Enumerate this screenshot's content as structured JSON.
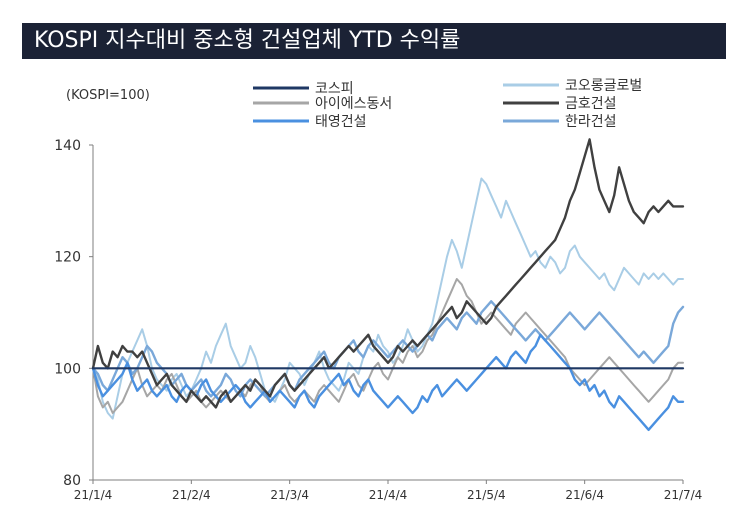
{
  "chart_data": {
    "type": "line",
    "title": "KOSPI 지수대비 중소형 건설업체 YTD 수익률",
    "unit_label": "(KOSPI=100)",
    "x_ticks": [
      "21/1/4",
      "21/2/4",
      "21/3/4",
      "21/4/4",
      "21/5/4",
      "21/6/4",
      "21/7/4"
    ],
    "x_range": [
      0,
      6
    ],
    "y_ticks": [
      80,
      100,
      120,
      140
    ],
    "ylim": [
      80,
      140
    ],
    "legend_position": "top",
    "series": [
      {
        "name": "코스피",
        "color": "#1f3864",
        "width": 2.2,
        "x": [
          0,
          6
        ],
        "values": [
          100,
          100
        ]
      },
      {
        "name": "코오롱글로벌",
        "color": "#a9cde6",
        "width": 2,
        "x": [
          0,
          0.05,
          0.1,
          0.15,
          0.2,
          0.25,
          0.3,
          0.35,
          0.4,
          0.45,
          0.5,
          0.55,
          0.6,
          0.65,
          0.7,
          0.75,
          0.8,
          0.85,
          0.9,
          0.95,
          1,
          1.05,
          1.1,
          1.15,
          1.2,
          1.25,
          1.3,
          1.35,
          1.4,
          1.45,
          1.5,
          1.55,
          1.6,
          1.65,
          1.7,
          1.75,
          1.8,
          1.85,
          1.9,
          1.95,
          2,
          2.05,
          2.1,
          2.15,
          2.2,
          2.25,
          2.3,
          2.35,
          2.4,
          2.45,
          2.5,
          2.55,
          2.6,
          2.65,
          2.7,
          2.75,
          2.8,
          2.85,
          2.9,
          2.95,
          3,
          3.05,
          3.1,
          3.15,
          3.2,
          3.25,
          3.3,
          3.35,
          3.4,
          3.45,
          3.5,
          3.55,
          3.6,
          3.65,
          3.7,
          3.75,
          3.8,
          3.85,
          3.9,
          3.95,
          4,
          4.05,
          4.1,
          4.15,
          4.2,
          4.25,
          4.3,
          4.35,
          4.4,
          4.45,
          4.5,
          4.55,
          4.6,
          4.65,
          4.7,
          4.75,
          4.8,
          4.85,
          4.9,
          4.95,
          5,
          5.05,
          5.1,
          5.15,
          5.2,
          5.25,
          5.3,
          5.35,
          5.4,
          5.45,
          5.5,
          5.55,
          5.6,
          5.65,
          5.7,
          5.75,
          5.8,
          5.85,
          5.9,
          5.95,
          6
        ],
        "values": [
          100,
          98,
          94,
          92,
          91,
          95,
          99,
          101,
          103,
          105,
          107,
          104,
          100,
          98,
          97,
          96,
          98,
          99,
          97,
          95,
          96,
          98,
          100,
          103,
          101,
          104,
          106,
          108,
          104,
          102,
          100,
          101,
          104,
          102,
          99,
          96,
          95,
          94,
          96,
          98,
          101,
          100,
          99,
          97,
          99,
          101,
          103,
          100,
          98,
          97,
          96,
          98,
          101,
          100,
          99,
          102,
          104,
          103,
          106,
          104,
          103,
          101,
          102,
          104,
          107,
          105,
          103,
          104,
          106,
          108,
          112,
          116,
          120,
          123,
          121,
          118,
          122,
          126,
          130,
          134,
          133,
          131,
          129,
          127,
          130,
          128,
          126,
          124,
          122,
          120,
          121,
          119,
          118,
          120,
          119,
          117,
          118,
          121,
          122,
          120,
          119,
          118,
          117,
          116,
          117,
          115,
          114,
          116,
          118,
          117,
          116,
          115,
          117,
          116,
          117,
          116,
          117,
          116,
          115,
          116,
          116
        ]
      },
      {
        "name": "아이에스동서",
        "color": "#a6a6a6",
        "width": 2,
        "x": [
          0,
          0.05,
          0.1,
          0.15,
          0.2,
          0.25,
          0.3,
          0.35,
          0.4,
          0.45,
          0.5,
          0.55,
          0.6,
          0.65,
          0.7,
          0.75,
          0.8,
          0.85,
          0.9,
          0.95,
          1,
          1.05,
          1.1,
          1.15,
          1.2,
          1.25,
          1.3,
          1.35,
          1.4,
          1.45,
          1.5,
          1.55,
          1.6,
          1.65,
          1.7,
          1.75,
          1.8,
          1.85,
          1.9,
          1.95,
          2,
          2.05,
          2.1,
          2.15,
          2.2,
          2.25,
          2.3,
          2.35,
          2.4,
          2.45,
          2.5,
          2.55,
          2.6,
          2.65,
          2.7,
          2.75,
          2.8,
          2.85,
          2.9,
          2.95,
          3,
          3.05,
          3.1,
          3.15,
          3.2,
          3.25,
          3.3,
          3.35,
          3.4,
          3.45,
          3.5,
          3.55,
          3.6,
          3.65,
          3.7,
          3.75,
          3.8,
          3.85,
          3.9,
          3.95,
          4,
          4.05,
          4.1,
          4.15,
          4.2,
          4.25,
          4.3,
          4.35,
          4.4,
          4.45,
          4.5,
          4.55,
          4.6,
          4.65,
          4.7,
          4.75,
          4.8,
          4.85,
          4.9,
          4.95,
          5,
          5.05,
          5.1,
          5.15,
          5.2,
          5.25,
          5.3,
          5.35,
          5.4,
          5.45,
          5.5,
          5.55,
          5.6,
          5.65,
          5.7,
          5.75,
          5.8,
          5.85,
          5.9,
          5.95,
          6
        ],
        "values": [
          100,
          95,
          93,
          94,
          92,
          93,
          94,
          96,
          98,
          100,
          97,
          95,
          96,
          97,
          96,
          98,
          99,
          97,
          95,
          94,
          95,
          96,
          94,
          93,
          94,
          95,
          96,
          95,
          94,
          95,
          96,
          95,
          97,
          98,
          97,
          95,
          94,
          95,
          96,
          97,
          95,
          94,
          95,
          96,
          95,
          94,
          96,
          97,
          96,
          95,
          94,
          96,
          98,
          99,
          97,
          96,
          98,
          100,
          101,
          99,
          98,
          100,
          102,
          101,
          103,
          104,
          102,
          103,
          105,
          106,
          108,
          110,
          112,
          114,
          116,
          115,
          113,
          112,
          110,
          108,
          109,
          110,
          109,
          108,
          107,
          106,
          108,
          109,
          110,
          109,
          108,
          107,
          106,
          105,
          104,
          103,
          102,
          100,
          99,
          98,
          97,
          98,
          99,
          100,
          101,
          102,
          101,
          100,
          99,
          98,
          97,
          96,
          95,
          94,
          95,
          96,
          97,
          98,
          100,
          101,
          101
        ]
      },
      {
        "name": "금호건설",
        "color": "#404040",
        "width": 2.4,
        "x": [
          0,
          0.05,
          0.1,
          0.15,
          0.2,
          0.25,
          0.3,
          0.35,
          0.4,
          0.45,
          0.5,
          0.55,
          0.6,
          0.65,
          0.7,
          0.75,
          0.8,
          0.85,
          0.9,
          0.95,
          1,
          1.05,
          1.1,
          1.15,
          1.2,
          1.25,
          1.3,
          1.35,
          1.4,
          1.45,
          1.5,
          1.55,
          1.6,
          1.65,
          1.7,
          1.75,
          1.8,
          1.85,
          1.9,
          1.95,
          2,
          2.05,
          2.1,
          2.15,
          2.2,
          2.25,
          2.3,
          2.35,
          2.4,
          2.45,
          2.5,
          2.55,
          2.6,
          2.65,
          2.7,
          2.75,
          2.8,
          2.85,
          2.9,
          2.95,
          3,
          3.05,
          3.1,
          3.15,
          3.2,
          3.25,
          3.3,
          3.35,
          3.4,
          3.45,
          3.5,
          3.55,
          3.6,
          3.65,
          3.7,
          3.75,
          3.8,
          3.85,
          3.9,
          3.95,
          4,
          4.05,
          4.1,
          4.15,
          4.2,
          4.25,
          4.3,
          4.35,
          4.4,
          4.45,
          4.5,
          4.55,
          4.6,
          4.65,
          4.7,
          4.75,
          4.8,
          4.85,
          4.9,
          4.95,
          5,
          5.05,
          5.1,
          5.15,
          5.2,
          5.25,
          5.3,
          5.35,
          5.4,
          5.45,
          5.5,
          5.55,
          5.6,
          5.65,
          5.7,
          5.75,
          5.8,
          5.85,
          5.9,
          5.95,
          6
        ],
        "values": [
          100,
          104,
          101,
          100,
          103,
          102,
          104,
          103,
          103,
          102,
          103,
          101,
          99,
          97,
          98,
          99,
          97,
          96,
          95,
          94,
          96,
          95,
          94,
          95,
          94,
          93,
          95,
          96,
          94,
          95,
          96,
          97,
          96,
          98,
          97,
          96,
          95,
          97,
          98,
          99,
          97,
          96,
          97,
          98,
          99,
          100,
          101,
          102,
          100,
          101,
          102,
          103,
          104,
          103,
          104,
          105,
          106,
          104,
          103,
          102,
          101,
          102,
          104,
          103,
          104,
          105,
          104,
          105,
          106,
          107,
          108,
          109,
          110,
          111,
          109,
          110,
          112,
          111,
          110,
          109,
          108,
          109,
          111,
          112,
          113,
          114,
          115,
          116,
          117,
          118,
          119,
          120,
          121,
          122,
          123,
          125,
          127,
          130,
          132,
          135,
          138,
          141,
          136,
          132,
          130,
          128,
          131,
          136,
          133,
          130,
          128,
          127,
          126,
          128,
          129,
          128,
          129,
          130,
          129,
          129,
          129
        ]
      },
      {
        "name": "태영건설",
        "color": "#4a90e0",
        "width": 2.4,
        "x": [
          0,
          0.05,
          0.1,
          0.15,
          0.2,
          0.25,
          0.3,
          0.35,
          0.4,
          0.45,
          0.5,
          0.55,
          0.6,
          0.65,
          0.7,
          0.75,
          0.8,
          0.85,
          0.9,
          0.95,
          1,
          1.05,
          1.1,
          1.15,
          1.2,
          1.25,
          1.3,
          1.35,
          1.4,
          1.45,
          1.5,
          1.55,
          1.6,
          1.65,
          1.7,
          1.75,
          1.8,
          1.85,
          1.9,
          1.95,
          2,
          2.05,
          2.1,
          2.15,
          2.2,
          2.25,
          2.3,
          2.35,
          2.4,
          2.45,
          2.5,
          2.55,
          2.6,
          2.65,
          2.7,
          2.75,
          2.8,
          2.85,
          2.9,
          2.95,
          3,
          3.05,
          3.1,
          3.15,
          3.2,
          3.25,
          3.3,
          3.35,
          3.4,
          3.45,
          3.5,
          3.55,
          3.6,
          3.65,
          3.7,
          3.75,
          3.8,
          3.85,
          3.9,
          3.95,
          4,
          4.05,
          4.1,
          4.15,
          4.2,
          4.25,
          4.3,
          4.35,
          4.4,
          4.45,
          4.5,
          4.55,
          4.6,
          4.65,
          4.7,
          4.75,
          4.8,
          4.85,
          4.9,
          4.95,
          5,
          5.05,
          5.1,
          5.15,
          5.2,
          5.25,
          5.3,
          5.35,
          5.4,
          5.45,
          5.5,
          5.55,
          5.6,
          5.65,
          5.7,
          5.75,
          5.8,
          5.85,
          5.9,
          5.95,
          6
        ],
        "values": [
          100,
          97,
          95,
          96,
          97,
          98,
          99,
          101,
          98,
          96,
          97,
          98,
          96,
          95,
          96,
          97,
          95,
          94,
          96,
          97,
          96,
          95,
          97,
          98,
          96,
          95,
          94,
          95,
          96,
          97,
          96,
          94,
          93,
          94,
          95,
          96,
          94,
          95,
          96,
          95,
          94,
          93,
          95,
          96,
          94,
          93,
          95,
          96,
          97,
          98,
          99,
          97,
          98,
          96,
          95,
          97,
          98,
          96,
          95,
          94,
          93,
          94,
          95,
          94,
          93,
          92,
          93,
          95,
          94,
          96,
          97,
          95,
          96,
          97,
          98,
          97,
          96,
          97,
          98,
          99,
          100,
          101,
          102,
          101,
          100,
          102,
          103,
          102,
          101,
          103,
          104,
          106,
          105,
          104,
          103,
          102,
          101,
          100,
          98,
          97,
          98,
          96,
          97,
          95,
          96,
          94,
          93,
          95,
          94,
          93,
          92,
          91,
          90,
          89,
          90,
          91,
          92,
          93,
          95,
          94,
          94
        ]
      },
      {
        "name": "한라건설",
        "color": "#7aa8d9",
        "width": 2.4,
        "x": [
          0,
          0.05,
          0.1,
          0.15,
          0.2,
          0.25,
          0.3,
          0.35,
          0.4,
          0.45,
          0.5,
          0.55,
          0.6,
          0.65,
          0.7,
          0.75,
          0.8,
          0.85,
          0.9,
          0.95,
          1,
          1.05,
          1.1,
          1.15,
          1.2,
          1.25,
          1.3,
          1.35,
          1.4,
          1.45,
          1.5,
          1.55,
          1.6,
          1.65,
          1.7,
          1.75,
          1.8,
          1.85,
          1.9,
          1.95,
          2,
          2.05,
          2.1,
          2.15,
          2.2,
          2.25,
          2.3,
          2.35,
          2.4,
          2.45,
          2.5,
          2.55,
          2.6,
          2.65,
          2.7,
          2.75,
          2.8,
          2.85,
          2.9,
          2.95,
          3,
          3.05,
          3.1,
          3.15,
          3.2,
          3.25,
          3.3,
          3.35,
          3.4,
          3.45,
          3.5,
          3.55,
          3.6,
          3.65,
          3.7,
          3.75,
          3.8,
          3.85,
          3.9,
          3.95,
          4,
          4.05,
          4.1,
          4.15,
          4.2,
          4.25,
          4.3,
          4.35,
          4.4,
          4.45,
          4.5,
          4.55,
          4.6,
          4.65,
          4.7,
          4.75,
          4.8,
          4.85,
          4.9,
          4.95,
          5,
          5.05,
          5.1,
          5.15,
          5.2,
          5.25,
          5.3,
          5.35,
          5.4,
          5.45,
          5.5,
          5.55,
          5.6,
          5.65,
          5.7,
          5.75,
          5.8,
          5.85,
          5.9,
          5.95,
          6
        ],
        "values": [
          100,
          99,
          97,
          96,
          98,
          100,
          102,
          101,
          99,
          100,
          102,
          104,
          103,
          101,
          100,
          99,
          97,
          98,
          99,
          97,
          96,
          97,
          98,
          96,
          95,
          96,
          97,
          99,
          98,
          96,
          95,
          97,
          98,
          97,
          96,
          95,
          96,
          97,
          98,
          99,
          97,
          96,
          98,
          99,
          100,
          101,
          102,
          103,
          101,
          100,
          102,
          103,
          104,
          105,
          103,
          102,
          104,
          105,
          104,
          103,
          102,
          103,
          104,
          105,
          104,
          103,
          104,
          105,
          106,
          105,
          107,
          108,
          109,
          108,
          107,
          109,
          110,
          109,
          108,
          110,
          111,
          112,
          111,
          110,
          109,
          108,
          107,
          106,
          105,
          106,
          107,
          106,
          105,
          106,
          107,
          108,
          109,
          110,
          109,
          108,
          107,
          108,
          109,
          110,
          109,
          108,
          107,
          106,
          105,
          104,
          103,
          102,
          103,
          102,
          101,
          102,
          103,
          104,
          108,
          110,
          111
        ]
      }
    ]
  }
}
